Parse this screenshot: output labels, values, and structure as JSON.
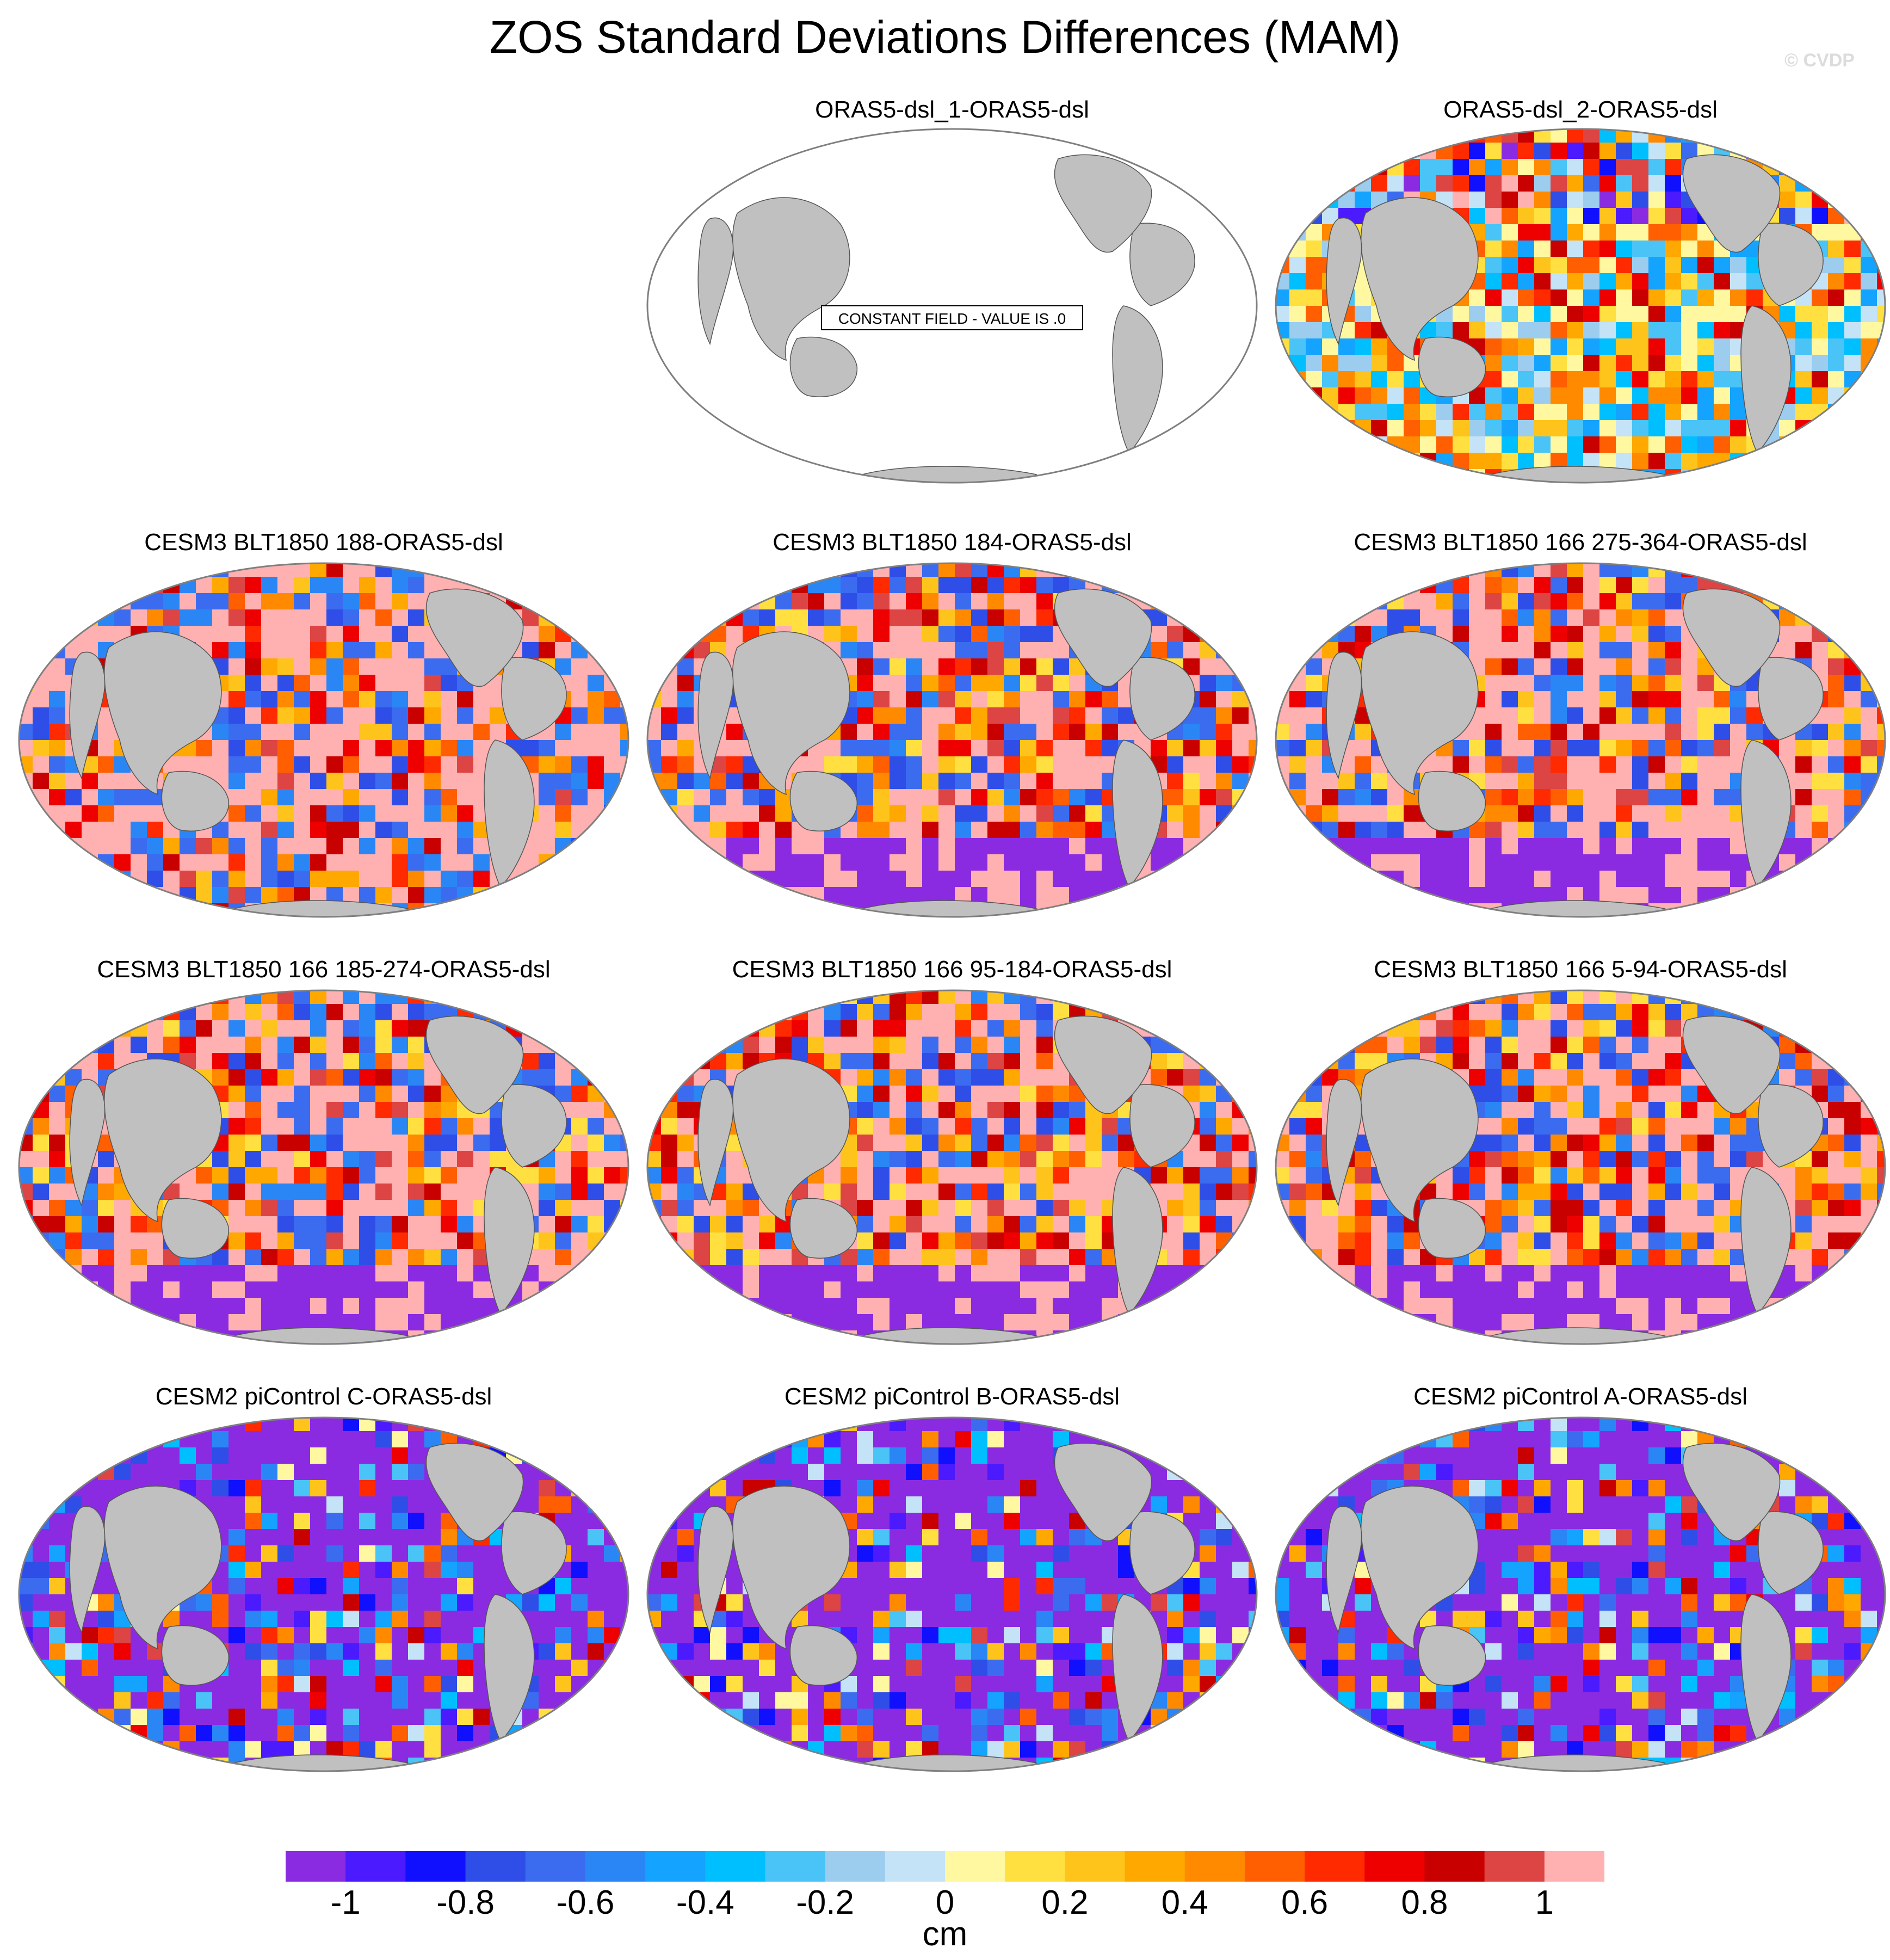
{
  "title": "ZOS Standard Deviations Differences (MAM)",
  "watermark": "© CVDP",
  "colors": {
    "land": "#c0c0c0",
    "ocean_empty": "#ffffff",
    "outline": "#7f7f7f",
    "scale": [
      "#8a2be2",
      "#4b1aff",
      "#1010ff",
      "#2f4ee8",
      "#3b6cf0",
      "#2b86f5",
      "#14a3ff",
      "#00bfff",
      "#4ac3f7",
      "#9ccdef",
      "#c5e3f7",
      "#fff8a0",
      "#ffe040",
      "#ffc41c",
      "#ffa800",
      "#ff8a00",
      "#ff5f00",
      "#ff2a00",
      "#ee0000",
      "#c80000",
      "#dd4444",
      "#ffb0b0"
    ]
  },
  "panels": [
    {
      "title": "ORAS5-dsl_1-ORAS5-dsl",
      "constant": true,
      "note": "CONSTANT FIELD - VALUE IS .0"
    },
    {
      "title": "ORAS5-dsl_2-ORAS5-dsl",
      "pattern": "mixed"
    },
    {
      "title": "CESM3 BLT1850 188-ORAS5-dsl",
      "pattern": "pinkish"
    },
    {
      "title": "CESM3 BLT1850 184-ORAS5-dsl",
      "pattern": "mixed-red"
    },
    {
      "title": "CESM3 BLT1850 166 275-364-ORAS5-dsl",
      "pattern": "mixed-red"
    },
    {
      "title": "CESM3 BLT1850 166 185-274-ORAS5-dsl",
      "pattern": "mixed-red"
    },
    {
      "title": "CESM3 BLT1850 166 95-184-ORAS5-dsl",
      "pattern": "mixed-red"
    },
    {
      "title": "CESM3 BLT1850 166 5-94-ORAS5-dsl",
      "pattern": "mixed-red"
    },
    {
      "title": "CESM2 piControl C-ORAS5-dsl",
      "pattern": "bluish"
    },
    {
      "title": "CESM2 piControl B-ORAS5-dsl",
      "pattern": "bluish"
    },
    {
      "title": "CESM2 piControl A-ORAS5-dsl",
      "pattern": "bluish"
    }
  ],
  "colorbar": {
    "unit": "cm",
    "tick_labels": [
      "-1",
      "-0.8",
      "-0.6",
      "-0.4",
      "-0.2",
      "0",
      "0.2",
      "0.4",
      "0.6",
      "0.8",
      "1"
    ]
  }
}
